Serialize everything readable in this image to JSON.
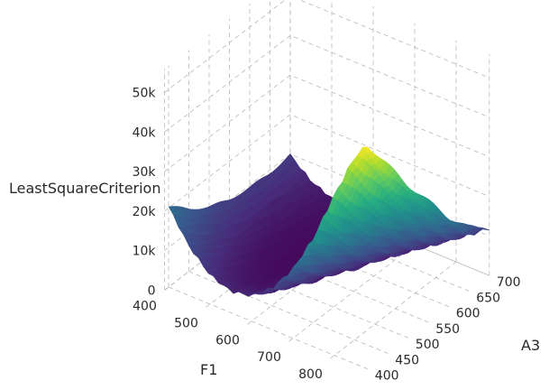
{
  "chart_data": {
    "type": "surface",
    "title": "",
    "axes": {
      "x": {
        "title": "F1",
        "range": [
          400,
          880
        ],
        "ticks": [
          400,
          500,
          600,
          700,
          800
        ]
      },
      "y": {
        "title": "A3",
        "range": [
          390,
          700
        ],
        "ticks": [
          400,
          450,
          500,
          550,
          600,
          650,
          700
        ]
      },
      "z": {
        "title": "LeastSquareCriterion",
        "range": [
          0,
          55000
        ],
        "ticks": [
          0,
          10000,
          20000,
          30000,
          40000,
          50000
        ],
        "tick_labels": [
          "0",
          "10k",
          "20k",
          "30k",
          "40k",
          "50k"
        ]
      }
    },
    "colorscale": "viridis",
    "colorscale_stops": [
      "#440154",
      "#472d7b",
      "#3b528b",
      "#2c728e",
      "#21918c",
      "#28ae80",
      "#5ec962",
      "#addc30",
      "#fde725"
    ],
    "surface_model": {
      "description_of_shape": "bowl",
      "z_grid": {
        "F1": [
          400,
          450,
          500,
          550,
          600,
          650,
          700,
          750,
          800,
          850,
          880
        ],
        "A3": [
          400,
          450,
          500,
          550,
          600,
          650,
          700
        ],
        "values_at_A3": {
          "400": [
            20000,
            12000,
            7000,
            5000,
            6000,
            10000,
            17000,
            27000,
            40000,
            52000,
            56000
          ],
          "450": [
            15500,
            8500,
            4200,
            2500,
            3200,
            6500,
            12500,
            21000,
            32000,
            43000,
            47000
          ],
          "500": [
            12000,
            6000,
            2500,
            1200,
            1500,
            3800,
            8500,
            15500,
            25000,
            34000,
            38000
          ],
          "550": [
            10000,
            4600,
            1800,
            800,
            900,
            2000,
            5200,
            10800,
            18500,
            26000,
            30000
          ],
          "600": [
            9000,
            4000,
            1600,
            800,
            700,
            1200,
            3000,
            7000,
            12500,
            18500,
            22000
          ],
          "650": [
            8800,
            4200,
            2000,
            1200,
            900,
            1000,
            1800,
            4200,
            8000,
            12500,
            15500
          ],
          "700": [
            9500,
            5000,
            2800,
            2000,
            1500,
            1300,
            1600,
            3000,
            5500,
            9000,
            11500
          ]
        }
      }
    }
  }
}
